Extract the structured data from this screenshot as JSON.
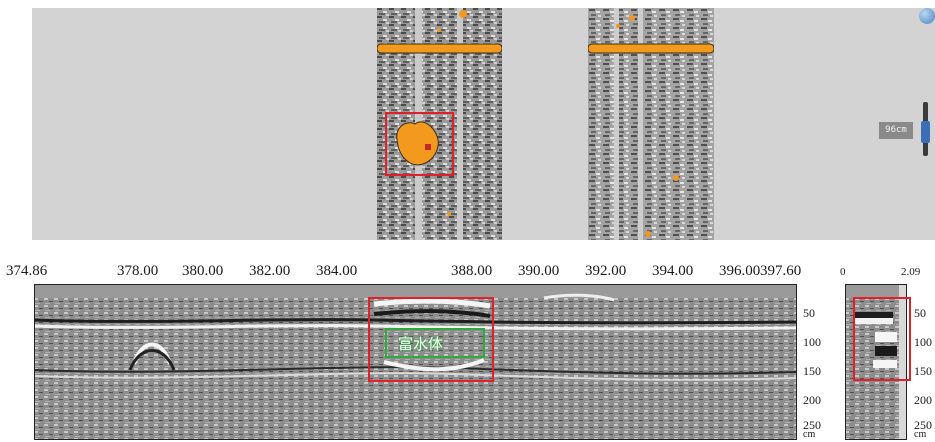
{
  "plan_view": {
    "scale_label": "96cm",
    "globe_icon": "globe-icon",
    "zoom_slider_level": 0.4
  },
  "profile": {
    "distance_ticks": [
      "374.86",
      "378.00",
      "380.00",
      "382.00",
      "384.00",
      "388.00",
      "390.00",
      "392.00",
      "394.00",
      "396.00",
      "397.60"
    ],
    "depth_ticks": [
      "50",
      "100",
      "150",
      "200",
      "250"
    ],
    "depth_unit": "cm",
    "anomaly_label": "富水体"
  },
  "side_profile": {
    "range_start": "0",
    "range_end": "2.09",
    "depth_ticks": [
      "50",
      "100",
      "150",
      "200",
      "250"
    ],
    "depth_unit": "cm"
  },
  "colors": {
    "anomaly_orange": "#f39a1e",
    "highlight_red": "#e0202a",
    "label_green": "#2eaa3c",
    "background_gray": "#d3d3d3"
  }
}
